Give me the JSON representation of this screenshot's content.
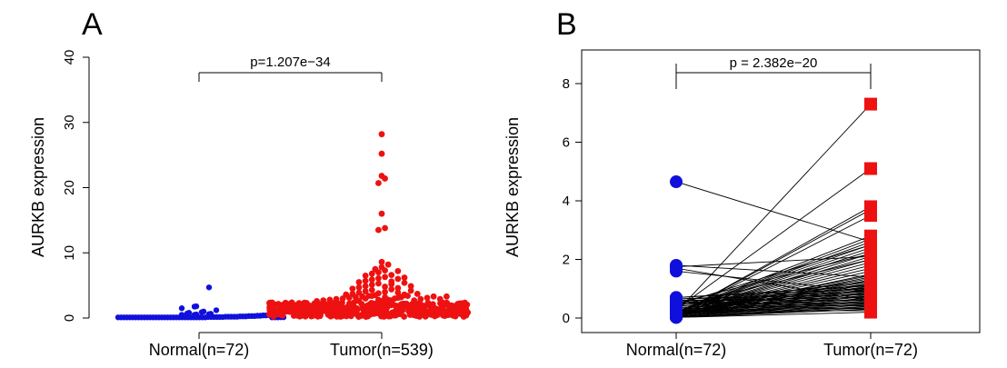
{
  "colors": {
    "normal": "#1010dd",
    "tumor": "#ee1111",
    "line": "#000000"
  },
  "chart_data": [
    {
      "type": "scatter",
      "panel": "A",
      "ylabel": "AURKB expression",
      "ylim": [
        0,
        40
      ],
      "yticks": [
        0,
        10,
        20,
        30,
        40
      ],
      "categories": [
        "Normal(n=72)",
        "Tumor(n=539)"
      ],
      "pvalue_label": "p=1.207e−34",
      "series": [
        {
          "name": "Normal(n=72)",
          "color": "#1010dd",
          "values": [
            0.1,
            0.1,
            0.1,
            0.1,
            0.1,
            0.1,
            0.1,
            0.1,
            0.1,
            0.1,
            0.1,
            0.1,
            0.1,
            0.1,
            0.1,
            0.1,
            0.1,
            0.1,
            0.1,
            0.1,
            0.1,
            0.1,
            0.1,
            0.1,
            0.1,
            0.1,
            0.1,
            0.1,
            0.1,
            0.1,
            0.1,
            0.15,
            0.15,
            0.15,
            0.15,
            0.15,
            0.15,
            0.2,
            0.2,
            0.2,
            0.2,
            0.2,
            0.25,
            0.25,
            0.25,
            0.3,
            0.3,
            0.3,
            0.35,
            0.35,
            0.4,
            0.4,
            0.45,
            0.5,
            0.5,
            0.55,
            0.6,
            0.65,
            0.7,
            0.8,
            0.9,
            1.0,
            1.2,
            1.5,
            1.75,
            1.8,
            4.7,
            0.1,
            0.1,
            0.1,
            0.12,
            0.12
          ]
        },
        {
          "name": "Tumor(n=539)",
          "color": "#ee1111",
          "dense_band": {
            "count": 460,
            "min": 0.2,
            "max": 2.4
          },
          "values": [
            2.5,
            2.6,
            2.7,
            2.8,
            2.9,
            3.0,
            3.1,
            3.2,
            3.3,
            3.4,
            3.5,
            3.6,
            2.6,
            2.8,
            3.0,
            3.2,
            3.4,
            2.7,
            2.9,
            3.1,
            3.3,
            2.5,
            2.9,
            3.3,
            2.6,
            3.0,
            3.4,
            2.8,
            3.2,
            2.7,
            3.1,
            3.5,
            3.7,
            3.9,
            4.1,
            4.3,
            4.5,
            4.7,
            4.9,
            5.1,
            5.3,
            5.5,
            5.7,
            5.9,
            6.1,
            6.3,
            6.5,
            6.8,
            7.0,
            7.3,
            7.5,
            7.8,
            8.2,
            8.6,
            3.8,
            4.0,
            4.4,
            4.8,
            5.2,
            5.6,
            6.0,
            6.6,
            7.2,
            13.5,
            13.8,
            16.0,
            20.7,
            21.4,
            21.8,
            25.2,
            28.2,
            3.9,
            4.6,
            5.4,
            6.2,
            3.6,
            4.2,
            3.7,
            4.9
          ]
        }
      ]
    },
    {
      "type": "line",
      "panel": "B",
      "ylabel": "AURKB expression",
      "ylim": [
        0,
        8
      ],
      "yticks": [
        0,
        2,
        4,
        6,
        8
      ],
      "categories": [
        "Normal(n=72)",
        "Tumor(n=72)"
      ],
      "pvalue_label": "p = 2.382e−20",
      "pairs": [
        [
          0.02,
          0.2
        ],
        [
          0.02,
          0.3
        ],
        [
          0.02,
          0.4
        ],
        [
          0.05,
          0.5
        ],
        [
          0.05,
          0.6
        ],
        [
          0.05,
          0.7
        ],
        [
          0.05,
          0.8
        ],
        [
          0.08,
          0.9
        ],
        [
          0.08,
          1.0
        ],
        [
          0.08,
          1.1
        ],
        [
          0.1,
          1.2
        ],
        [
          0.1,
          1.3
        ],
        [
          0.1,
          1.4
        ],
        [
          0.1,
          1.5
        ],
        [
          0.12,
          1.6
        ],
        [
          0.12,
          1.7
        ],
        [
          0.12,
          1.8
        ],
        [
          0.15,
          1.9
        ],
        [
          0.15,
          2.0
        ],
        [
          0.15,
          2.1
        ],
        [
          0.15,
          2.2
        ],
        [
          0.18,
          2.3
        ],
        [
          0.18,
          2.4
        ],
        [
          0.2,
          2.5
        ],
        [
          0.2,
          2.6
        ],
        [
          0.2,
          2.7
        ],
        [
          0.22,
          2.8
        ],
        [
          0.1,
          3.5
        ],
        [
          0.1,
          3.7
        ],
        [
          0.1,
          3.8
        ],
        [
          0.3,
          5.1
        ],
        [
          0.2,
          7.3
        ],
        [
          0.25,
          0.25
        ],
        [
          0.25,
          0.35
        ],
        [
          0.3,
          0.45
        ],
        [
          0.3,
          0.55
        ],
        [
          0.35,
          0.65
        ],
        [
          0.35,
          0.75
        ],
        [
          0.4,
          0.85
        ],
        [
          0.4,
          0.95
        ],
        [
          0.45,
          1.05
        ],
        [
          0.45,
          1.15
        ],
        [
          0.5,
          1.25
        ],
        [
          0.5,
          0.3
        ],
        [
          0.55,
          0.4
        ],
        [
          0.55,
          0.5
        ],
        [
          0.6,
          0.6
        ],
        [
          0.6,
          0.7
        ],
        [
          0.65,
          0.8
        ],
        [
          0.65,
          0.9
        ],
        [
          0.7,
          1.0
        ],
        [
          0.7,
          1.1
        ],
        [
          0.03,
          0.35
        ],
        [
          0.03,
          0.45
        ],
        [
          0.06,
          0.55
        ],
        [
          0.06,
          0.65
        ],
        [
          0.09,
          0.75
        ],
        [
          0.09,
          0.85
        ],
        [
          0.11,
          0.95
        ],
        [
          0.11,
          1.05
        ],
        [
          0.13,
          1.15
        ],
        [
          0.13,
          1.25
        ],
        [
          0.16,
          1.35
        ],
        [
          0.16,
          1.45
        ],
        [
          0.4,
          2.0
        ],
        [
          0.5,
          2.2
        ],
        [
          1.6,
          0.9
        ],
        [
          1.7,
          0.6
        ],
        [
          1.8,
          1.4
        ],
        [
          1.75,
          2.1
        ],
        [
          4.65,
          2.6
        ],
        [
          0.45,
          2.5
        ]
      ]
    }
  ]
}
